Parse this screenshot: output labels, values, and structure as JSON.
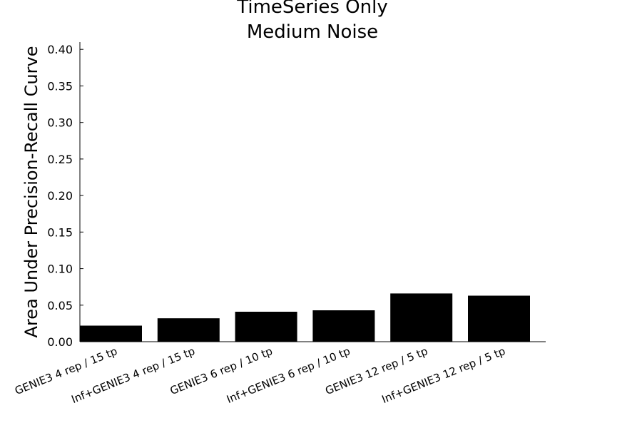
{
  "chart_data": {
    "type": "bar",
    "title_lines": [
      "TimeSeries Only",
      "Medium Noise"
    ],
    "ylabel": "Area Under Precision-Recall Curve",
    "xlabel": "",
    "categories": [
      "GENIE3 4 rep / 15 tp",
      "Inf+GENIE3 4 rep / 15 tp",
      "GENIE3 6 rep / 10 tp",
      "Inf+GENIE3 6 rep / 10 tp",
      "GENIE3 12 rep / 5 tp",
      "Inf+GENIE3 12 rep / 5 tp"
    ],
    "values": [
      0.022,
      0.032,
      0.041,
      0.043,
      0.066,
      0.063
    ],
    "ylim": [
      0,
      0.41
    ],
    "yticks": [
      "0.00",
      "0.05",
      "0.10",
      "0.15",
      "0.20",
      "0.25",
      "0.30",
      "0.35",
      "0.40"
    ],
    "bar_color": "#000000",
    "grid": false,
    "legend": "none"
  }
}
